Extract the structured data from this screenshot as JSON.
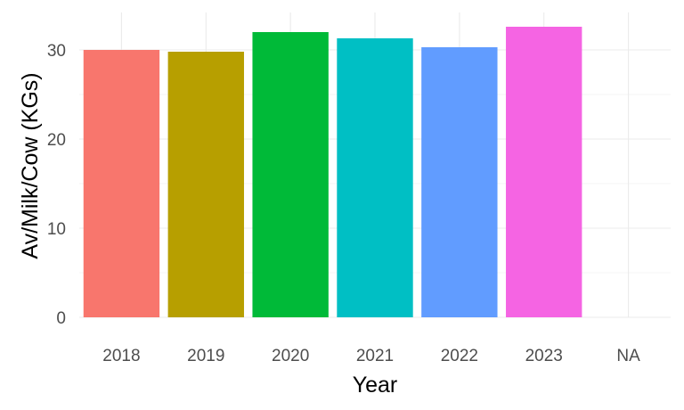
{
  "chart_data": {
    "type": "bar",
    "title": "",
    "xlabel": "Year",
    "ylabel": "Av/Milk/Cow (KGs)",
    "categories": [
      "2018",
      "2019",
      "2020",
      "2021",
      "2022",
      "2023",
      "NA"
    ],
    "values": [
      30.0,
      29.8,
      32.0,
      31.3,
      30.3,
      32.6,
      null
    ],
    "colors": [
      "#F8766D",
      "#B79F00",
      "#00BA38",
      "#00BFC4",
      "#619CFF",
      "#F564E3",
      "#FF61C3"
    ],
    "ylim": [
      0,
      32.6
    ],
    "yticks": [
      0,
      10,
      20,
      30
    ],
    "grid": true,
    "legend": "none"
  }
}
